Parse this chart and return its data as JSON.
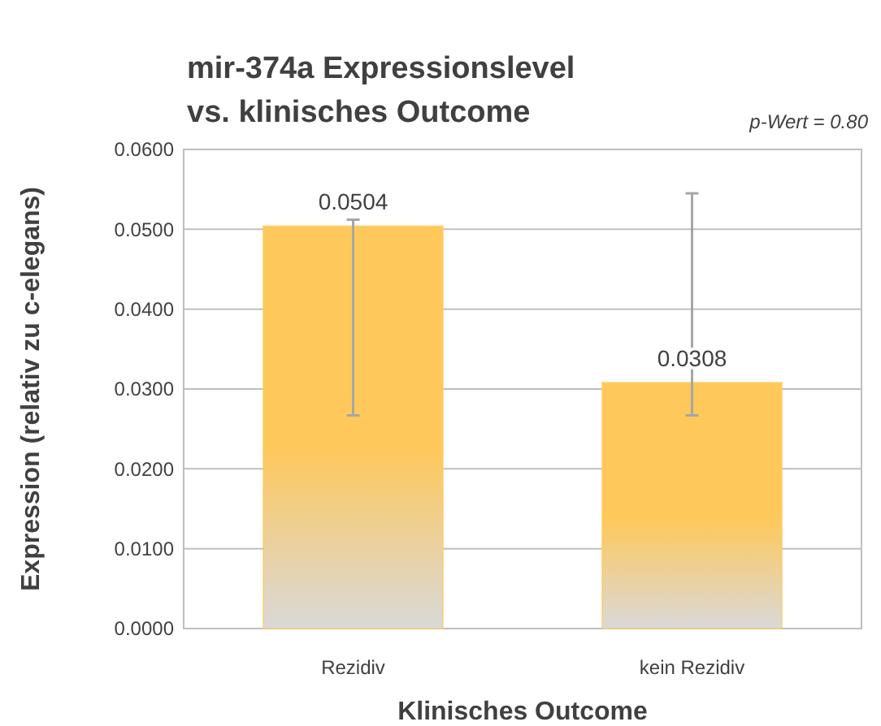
{
  "chart_data": {
    "type": "bar",
    "title": "mir-374a Expressionslevel\nvs. klinisches Outcome",
    "xlabel": "Klinisches Outcome",
    "ylabel": "Expression (relativ zu c-elegans)",
    "annotations": [
      "p-Wert = 0.80"
    ],
    "categories": [
      "Rezidiv",
      "kein Rezidiv"
    ],
    "values": [
      0.0504,
      0.0308
    ],
    "color": "#ffc85a",
    "errors": [
      [
        0.0267,
        0.0512
      ],
      [
        0.0267,
        0.0545
      ]
    ],
    "data_labels": true,
    "grid": "y",
    "ylim": [
      0,
      0.06
    ],
    "yticks": [
      {
        "value": 0,
        "label": "0.0000"
      },
      {
        "value": 0.01,
        "label": "0.0100"
      },
      {
        "value": 0.02,
        "label": "0.0200"
      },
      {
        "value": 0.03,
        "label": "0.0300"
      },
      {
        "value": 0.04,
        "label": "0.0400"
      },
      {
        "value": 0.05,
        "label": "0.0500"
      },
      {
        "value": 0.06,
        "label": "0.0600"
      }
    ]
  }
}
